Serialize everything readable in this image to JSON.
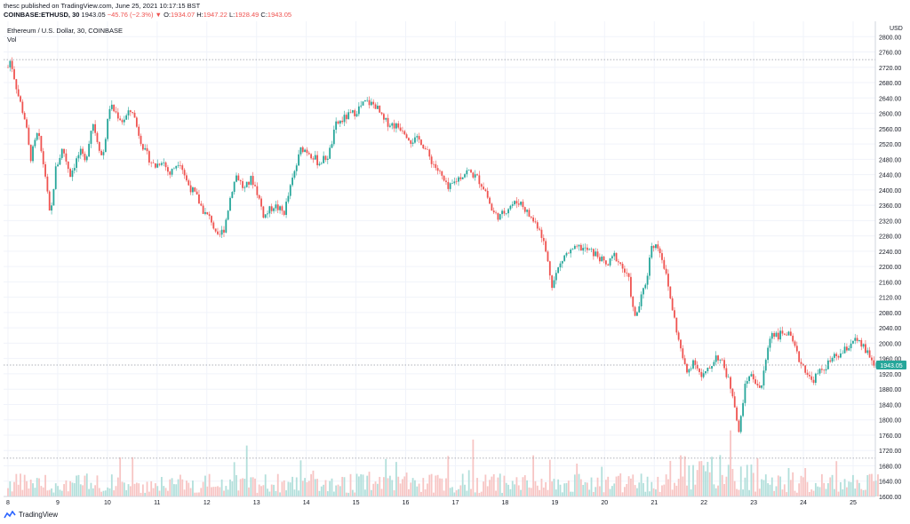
{
  "header": {
    "published_by": "thesc published on TradingView.com, June 25, 2021 10:17:15 BST",
    "symbol": "COINBASE:ETHUSD, 30",
    "last": "1943.05",
    "change": "−45.76 (−2.3%)",
    "change_arrow": "▼",
    "o_label": "O:",
    "o_value": "1934.07",
    "h_label": "H:",
    "h_value": "1947.22",
    "l_label": "L:",
    "l_value": "1928.49",
    "c_label": "C:",
    "c_value": "1943.05"
  },
  "chart_title": "Ethereum / U.S. Dollar, 30, COINBASE",
  "vol_label": "Vol",
  "price_axis_unit": "USD",
  "current_price_tag": "1943.05",
  "footer_brand": "TradingView",
  "colors": {
    "up": "#26a69a",
    "down": "#ef5350",
    "volume_up": "#b2dfdb",
    "volume_down": "#f7c5c4",
    "price_tag": "#26a69a",
    "grid": "#f0f3fa"
  },
  "chart_data": {
    "type": "candlestick",
    "title": "Ethereum / U.S. Dollar, 30, COINBASE",
    "ylabel": "USD",
    "ylim": [
      1600,
      2840
    ],
    "y_ticks": [
      1600,
      1640,
      1680,
      1720,
      1760,
      1800,
      1840,
      1880,
      1920,
      1960,
      2000,
      2040,
      2080,
      2120,
      2160,
      2200,
      2240,
      2280,
      2320,
      2360,
      2400,
      2440,
      2480,
      2520,
      2560,
      2600,
      2640,
      2680,
      2720,
      2760,
      2800
    ],
    "x_ticks": [
      "8",
      "9",
      "10",
      "11",
      "12",
      "13",
      "14",
      "15",
      "16",
      "17",
      "18",
      "19",
      "20",
      "21",
      "22",
      "23",
      "24",
      "25"
    ],
    "grid": true,
    "reference_lines": [
      2740,
      1943.05,
      1700
    ],
    "current_price": 1943.05,
    "price_path": [
      [
        8.0,
        2720
      ],
      [
        8.05,
        2740
      ],
      [
        8.2,
        2650
      ],
      [
        8.35,
        2580
      ],
      [
        8.45,
        2480
      ],
      [
        8.6,
        2550
      ],
      [
        8.75,
        2440
      ],
      [
        8.85,
        2320
      ],
      [
        8.95,
        2450
      ],
      [
        9.1,
        2510
      ],
      [
        9.25,
        2440
      ],
      [
        9.45,
        2500
      ],
      [
        9.55,
        2470
      ],
      [
        9.7,
        2580
      ],
      [
        9.9,
        2480
      ],
      [
        10.05,
        2620
      ],
      [
        10.3,
        2580
      ],
      [
        10.5,
        2610
      ],
      [
        10.6,
        2560
      ],
      [
        10.75,
        2500
      ],
      [
        10.95,
        2460
      ],
      [
        11.1,
        2480
      ],
      [
        11.25,
        2440
      ],
      [
        11.45,
        2480
      ],
      [
        11.6,
        2420
      ],
      [
        11.8,
        2380
      ],
      [
        11.95,
        2340
      ],
      [
        12.1,
        2320
      ],
      [
        12.2,
        2270
      ],
      [
        12.35,
        2300
      ],
      [
        12.5,
        2400
      ],
      [
        12.6,
        2440
      ],
      [
        12.75,
        2400
      ],
      [
        12.9,
        2430
      ],
      [
        13.0,
        2400
      ],
      [
        13.15,
        2330
      ],
      [
        13.35,
        2360
      ],
      [
        13.55,
        2340
      ],
      [
        13.75,
        2440
      ],
      [
        13.9,
        2510
      ],
      [
        14.05,
        2500
      ],
      [
        14.25,
        2470
      ],
      [
        14.45,
        2490
      ],
      [
        14.6,
        2570
      ],
      [
        14.8,
        2590
      ],
      [
        14.95,
        2600
      ],
      [
        15.2,
        2630
      ],
      [
        15.4,
        2620
      ],
      [
        15.55,
        2580
      ],
      [
        15.75,
        2570
      ],
      [
        15.95,
        2560
      ],
      [
        16.1,
        2530
      ],
      [
        16.3,
        2530
      ],
      [
        16.5,
        2480
      ],
      [
        16.7,
        2440
      ],
      [
        16.85,
        2400
      ],
      [
        17.05,
        2430
      ],
      [
        17.25,
        2450
      ],
      [
        17.45,
        2430
      ],
      [
        17.6,
        2400
      ],
      [
        17.75,
        2340
      ],
      [
        17.9,
        2330
      ],
      [
        18.1,
        2360
      ],
      [
        18.3,
        2370
      ],
      [
        18.5,
        2330
      ],
      [
        18.7,
        2300
      ],
      [
        18.8,
        2250
      ],
      [
        18.95,
        2150
      ],
      [
        19.05,
        2190
      ],
      [
        19.2,
        2230
      ],
      [
        19.35,
        2240
      ],
      [
        19.5,
        2250
      ],
      [
        19.7,
        2240
      ],
      [
        19.85,
        2230
      ],
      [
        20.05,
        2200
      ],
      [
        20.2,
        2230
      ],
      [
        20.35,
        2200
      ],
      [
        20.5,
        2160
      ],
      [
        20.6,
        2060
      ],
      [
        20.7,
        2100
      ],
      [
        20.85,
        2170
      ],
      [
        20.95,
        2260
      ],
      [
        21.1,
        2250
      ],
      [
        21.2,
        2200
      ],
      [
        21.35,
        2100
      ],
      [
        21.5,
        2000
      ],
      [
        21.65,
        1920
      ],
      [
        21.8,
        1960
      ],
      [
        21.95,
        1910
      ],
      [
        22.1,
        1930
      ],
      [
        22.25,
        1970
      ],
      [
        22.4,
        1940
      ],
      [
        22.5,
        1900
      ],
      [
        22.6,
        1860
      ],
      [
        22.7,
        1760
      ],
      [
        22.8,
        1870
      ],
      [
        22.9,
        1920
      ],
      [
        23.05,
        1900
      ],
      [
        23.15,
        1880
      ],
      [
        23.25,
        1960
      ],
      [
        23.35,
        2030
      ],
      [
        23.5,
        2020
      ],
      [
        23.65,
        2030
      ],
      [
        23.75,
        2010
      ],
      [
        23.9,
        1960
      ],
      [
        24.05,
        1930
      ],
      [
        24.15,
        1900
      ],
      [
        24.3,
        1920
      ],
      [
        24.45,
        1940
      ],
      [
        24.6,
        1960
      ],
      [
        24.75,
        1970
      ],
      [
        24.9,
        1990
      ],
      [
        25.0,
        2010
      ],
      [
        25.1,
        2000
      ],
      [
        25.2,
        1990
      ],
      [
        25.3,
        1970
      ],
      [
        25.4,
        1950
      ],
      [
        25.45,
        1940
      ],
      [
        25.5,
        1943
      ]
    ]
  }
}
